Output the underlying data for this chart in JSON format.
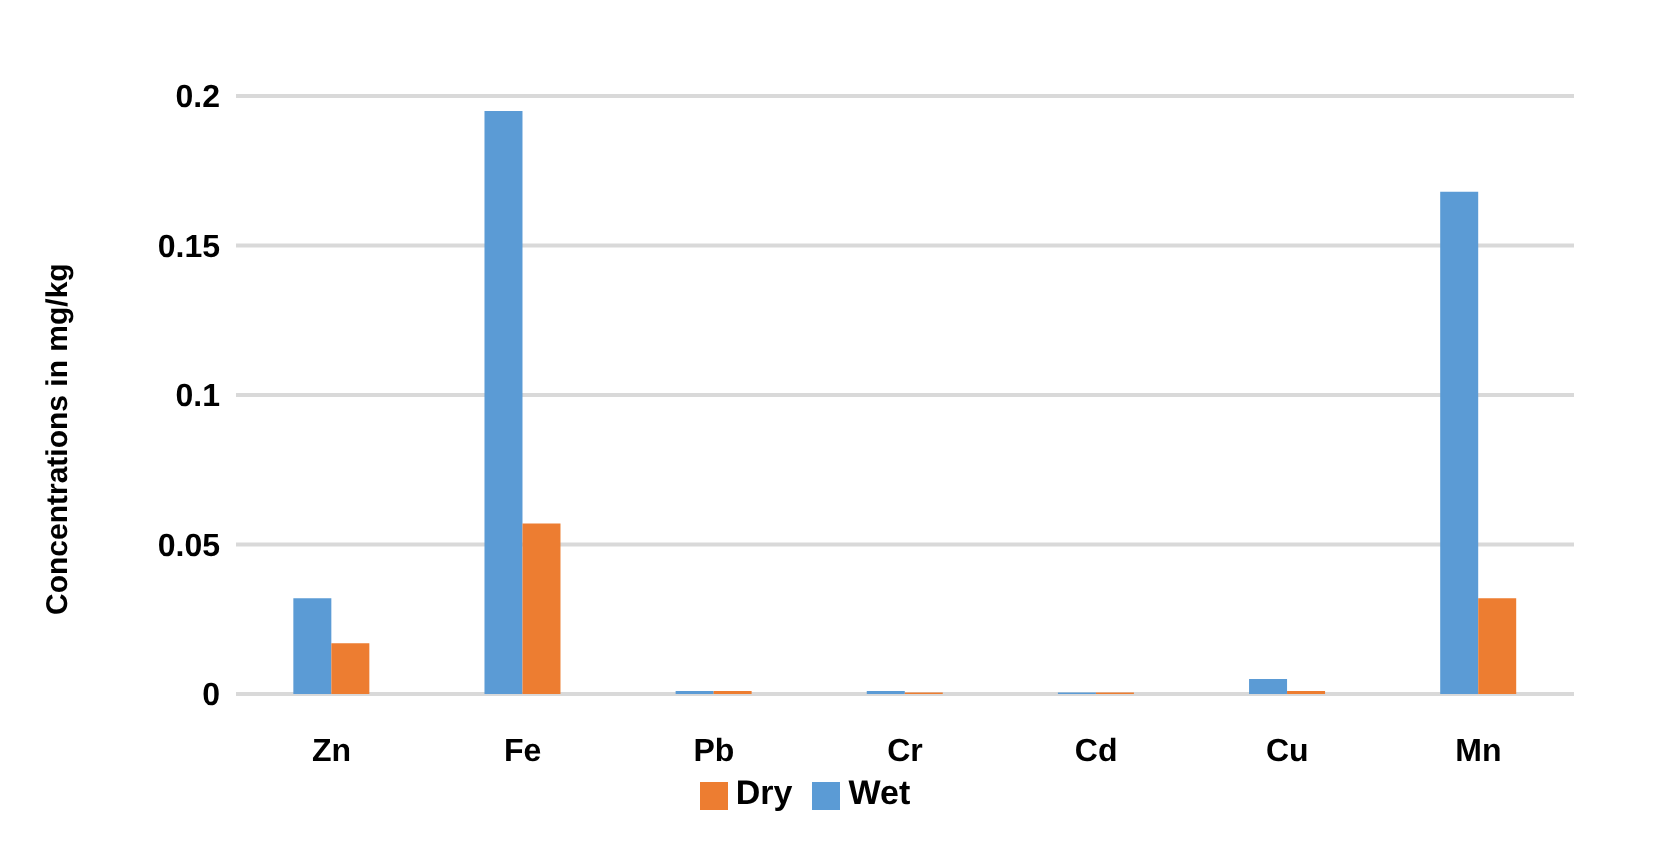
{
  "chart_data": {
    "type": "bar",
    "ylabel": "Concentrations in mg/kg",
    "categories": [
      "Zn",
      "Fe",
      "Pb",
      "Cr",
      "Cd",
      "Cu",
      "Mn"
    ],
    "series": [
      {
        "name": "Wet",
        "color": "#5b9bd5",
        "values": [
          0.032,
          0.195,
          0.001,
          0.001,
          0.0005,
          0.005,
          0.168
        ]
      },
      {
        "name": "Dry",
        "color": "#ed7d31",
        "values": [
          0.017,
          0.057,
          0.001,
          0.0005,
          0.0005,
          0.001,
          0.032
        ]
      }
    ],
    "ylim": [
      0,
      0.2
    ],
    "yticks": [
      0,
      0.05,
      0.1,
      0.15,
      0.2
    ],
    "grid": "y",
    "legend": "bottom"
  }
}
